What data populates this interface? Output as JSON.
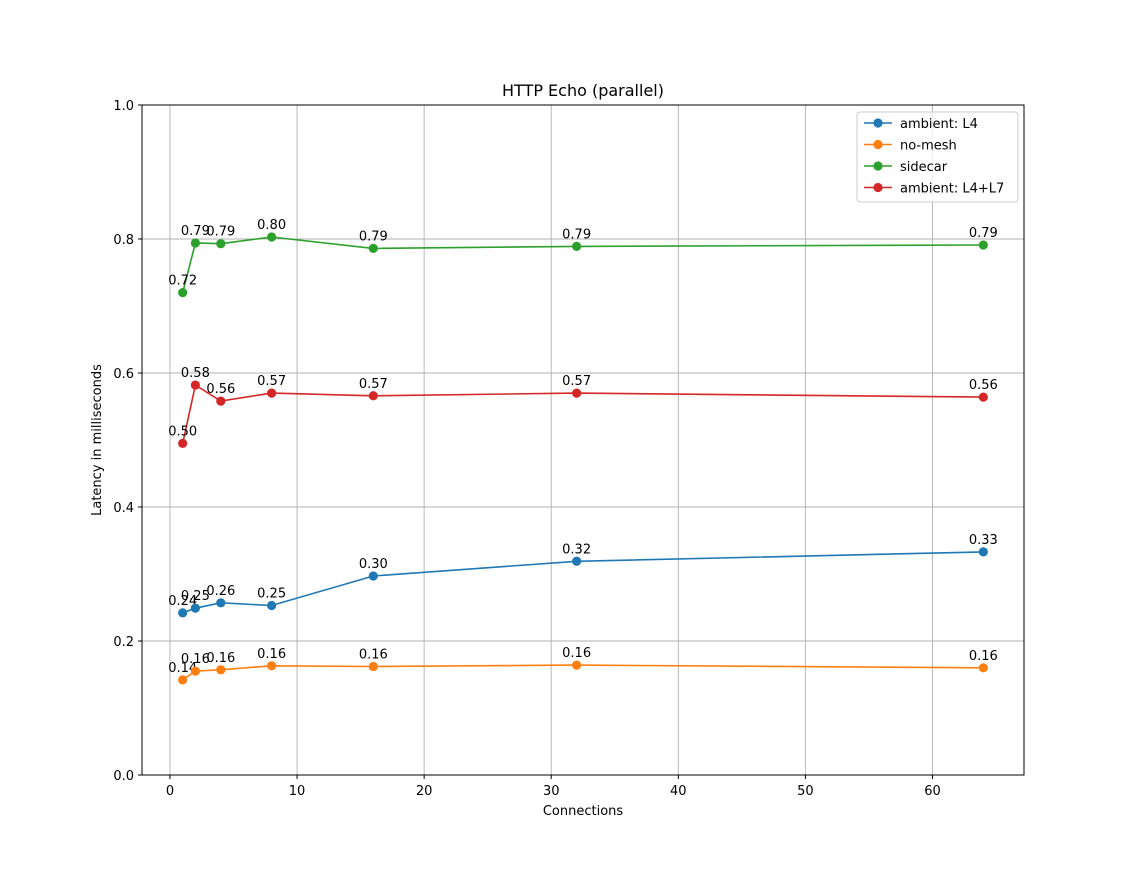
{
  "chart_data": {
    "type": "line",
    "title": "HTTP Echo (parallel)",
    "xlabel": "Connections",
    "ylabel": "Latency in milliseconds",
    "xlim": [
      -2.2,
      67.2
    ],
    "ylim": [
      0.0,
      1.0
    ],
    "xticks": [
      0,
      10,
      20,
      30,
      40,
      50,
      60
    ],
    "yticks": [
      0.0,
      0.2,
      0.4,
      0.6,
      0.8,
      1.0
    ],
    "xtick_labels": [
      "0",
      "10",
      "20",
      "30",
      "40",
      "50",
      "60"
    ],
    "ytick_labels": [
      "0.0",
      "0.2",
      "0.4",
      "0.6",
      "0.8",
      "1.0"
    ],
    "grid": true,
    "legend_position": "top-right",
    "x": [
      1,
      2,
      4,
      8,
      16,
      32,
      64
    ],
    "series": [
      {
        "name": "ambient: L4",
        "color": "#1f77b4",
        "values": [
          0.242,
          0.249,
          0.257,
          0.253,
          0.297,
          0.319,
          0.333
        ],
        "labels": [
          "0.24",
          "0.25",
          "0.26",
          "0.25",
          "0.30",
          "0.32",
          "0.33"
        ]
      },
      {
        "name": "no-mesh",
        "color": "#ff7f0e",
        "values": [
          0.142,
          0.155,
          0.157,
          0.163,
          0.162,
          0.164,
          0.16
        ],
        "labels": [
          "0.14",
          "0.16",
          "0.16",
          "0.16",
          "0.16",
          "0.16",
          "0.16"
        ]
      },
      {
        "name": "sidecar",
        "color": "#2ca02c",
        "values": [
          0.72,
          0.794,
          0.793,
          0.803,
          0.786,
          0.789,
          0.791
        ],
        "labels": [
          "0.72",
          "0.79",
          "0.79",
          "0.80",
          "0.79",
          "0.79",
          "0.79"
        ]
      },
      {
        "name": "ambient: L4+L7",
        "color": "#d62728",
        "values": [
          0.495,
          0.582,
          0.558,
          0.57,
          0.566,
          0.57,
          0.564
        ],
        "labels": [
          "0.50",
          "0.58",
          "0.56",
          "0.57",
          "0.57",
          "0.57",
          "0.56"
        ]
      }
    ]
  }
}
